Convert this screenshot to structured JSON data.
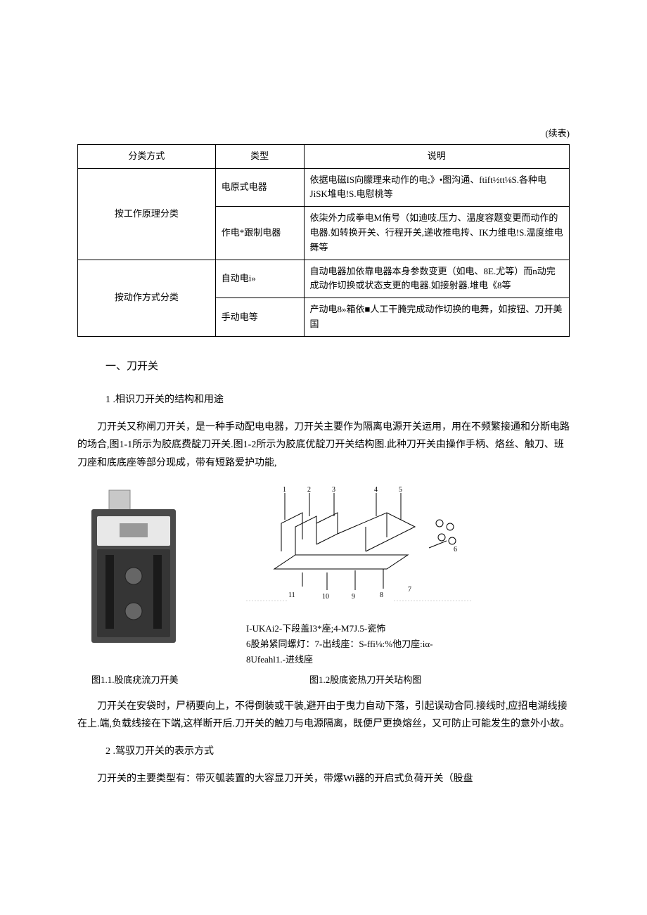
{
  "continueLabel": "(续表)",
  "table": {
    "headers": [
      "分类方式",
      "类型",
      "说明"
    ],
    "groups": [
      {
        "group": "按工作原理分类",
        "rows": [
          {
            "type": "电原式电器",
            "desc": "依据电磁IS向朦理来动作的电;》•图沟通、ftift½tt⅛S.各种电JiSK堆电!S.电慰桃等"
          },
          {
            "type": "作电*跟制电器",
            "desc": "依柒外力成拳电M侑号（如迪吱.压力、温度容题变更而动作的电器.如转换开关、行程开关,递收推电抟、IK力维电!S.温度维电舞等"
          }
        ]
      },
      {
        "group": "按动作方式分类",
        "rows": [
          {
            "type": "自动电i»",
            "desc": "自动电器加依靠电器本身参数变更（如电、8E.尤等）而n动完成动作切换或状态支更的电器.如接射器.堆电《8等"
          },
          {
            "type": "手动电等",
            "desc": "产动电8»箱依■人工干腌完成动作切换的电舞，如按钮、刀开美国"
          }
        ]
      }
    ]
  },
  "sectionTitle": "一、刀开关",
  "item1": "1 .相识刀开关的结构和用途",
  "para1": "刀开关又称闸刀开关，是一种手动配电电器，刀开关主要作为隔离电源开关运用，用在不频繁接通和分斯电路的场合,图1-1所示为胶底费靛刀开关.图1-2所示为胶底优靛刀开关结构图.此种刀开关由操作手柄、烙丝、触刀、班刀座和底底座等部分现成，带有短路爱护功能,",
  "figNotesLine1": "I-UKAi2-下段盖I3*座;4-M7J.5-瓷怖",
  "figNotesLine2": "6股弟紧同螺灯：7-出线座：S-ffi⅛:%他刀座:iα-",
  "figNotesLine3": "8Ufeahl1.-进线座",
  "caption1": "图1.1.股底疣流刀开美",
  "caption2": "图1.2股底瓷热刀开关玷构图",
  "para2": "刀开关在安袋时，尸柄要向上，不得倒装或干装,避开由于曳力自动下落，引起误动合同.接线时,应招电湖线接在上.端,负载线接在下端,这样断开后.刀开关的触刀与电源隔离，既便尸更换熔丝，又可防止可能发生的意外小故。",
  "item2": "2 .驾驭刀开关的表示方式",
  "para3": "刀开关的主要类型有：带灭瓠装置的大容显刀开关，带爆Wi器的开启式负荷开关（股盘",
  "colors": {
    "text": "#000000",
    "background": "#ffffff",
    "border": "#000000",
    "photoGray": "#5a5a5a",
    "photoLight": "#d0d0d0"
  }
}
